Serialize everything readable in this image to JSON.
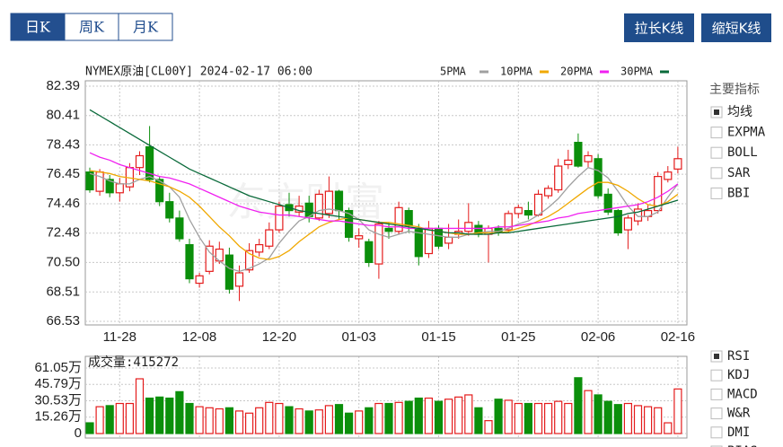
{
  "tabs": [
    "日K",
    "周K",
    "月K"
  ],
  "buttons": [
    "拉长K线",
    "缩短K线"
  ],
  "indicators": {
    "title": "主要指标",
    "options": [
      "均线",
      "EXPMA",
      "BOLL",
      "SAR",
      "BBI"
    ],
    "selected": 0
  },
  "sub_indicators": {
    "options": [
      "RSI",
      "KDJ",
      "MACD",
      "W&R",
      "DMI",
      "BIAS"
    ],
    "selected": 0
  },
  "chart_data": [
    {
      "type": "candlestick",
      "title": "NYMEX原油[CL00Y] 2024-02-17 06:00",
      "watermark": "东方财富",
      "up_color": "#e41b1b",
      "down_color": "#0b8f0b",
      "categories": [
        null,
        null,
        null,
        "11-28",
        null,
        null,
        null,
        null,
        null,
        null,
        null,
        "12-08",
        null,
        null,
        null,
        null,
        null,
        null,
        null,
        "12-20",
        null,
        null,
        null,
        null,
        null,
        null,
        null,
        "01-03",
        null,
        null,
        null,
        null,
        null,
        null,
        null,
        "01-15",
        null,
        null,
        null,
        null,
        null,
        null,
        null,
        "01-25",
        null,
        null,
        null,
        null,
        null,
        null,
        null,
        "02-06",
        null,
        null,
        null,
        null,
        null,
        null,
        null,
        "02-16"
      ],
      "open": [
        76.6,
        75.3,
        76.1,
        75.2,
        75.6,
        76.9,
        78.3,
        76.1,
        74.6,
        73.5,
        71.7,
        69.1,
        69.9,
        70.6,
        71.0,
        68.9,
        70.0,
        71.2,
        71.6,
        72.7,
        74.4,
        73.9,
        74.5,
        73.5,
        73.8,
        75.3,
        74.0,
        72.1,
        71.9,
        70.4,
        72.8,
        72.6,
        74.0,
        72.8,
        71.1,
        72.8,
        71.8,
        72.4,
        72.6,
        73.0,
        72.4,
        72.8,
        72.7,
        73.8,
        74.0,
        73.7,
        75.0,
        75.4,
        77.1,
        78.6,
        77.3,
        77.5,
        75.1,
        74.0,
        72.7,
        73.3,
        73.6,
        74.0,
        76.1,
        76.8
      ],
      "high": [
        76.9,
        76.8,
        76.4,
        76.2,
        77.2,
        78.0,
        79.7,
        76.3,
        75.2,
        74.0,
        72.1,
        69.8,
        72.0,
        71.9,
        71.5,
        70.3,
        71.8,
        72.1,
        73.2,
        74.6,
        75.2,
        75.0,
        75.0,
        75.4,
        76.3,
        75.4,
        74.2,
        72.8,
        72.1,
        73.3,
        73.2,
        74.6,
        74.2,
        73.1,
        73.3,
        73.0,
        73.1,
        73.4,
        74.5,
        73.3,
        73.0,
        73.0,
        74.0,
        74.4,
        74.6,
        75.4,
        75.7,
        77.5,
        78.1,
        79.2,
        78.0,
        77.8,
        75.5,
        74.1,
        73.7,
        74.5,
        74.4,
        76.6,
        77.0,
        78.3
      ],
      "low": [
        75.2,
        75.0,
        74.9,
        74.6,
        75.3,
        76.4,
        75.9,
        74.3,
        73.2,
        71.9,
        69.1,
        68.8,
        69.7,
        70.4,
        68.4,
        67.9,
        69.8,
        70.9,
        71.4,
        72.5,
        73.6,
        73.6,
        73.2,
        73.3,
        73.5,
        73.4,
        71.9,
        71.5,
        70.2,
        69.4,
        72.1,
        72.4,
        72.5,
        70.3,
        70.8,
        71.4,
        71.4,
        72.1,
        72.3,
        72.2,
        70.5,
        72.3,
        72.5,
        73.5,
        73.4,
        73.6,
        74.8,
        75.2,
        76.8,
        76.9,
        76.9,
        74.8,
        73.7,
        72.3,
        71.4,
        73.0,
        73.3,
        73.8,
        75.9,
        76.5
      ],
      "close": [
        75.4,
        76.6,
        75.2,
        75.8,
        76.9,
        77.7,
        76.1,
        74.6,
        73.5,
        72.1,
        69.4,
        69.6,
        71.6,
        71.4,
        68.7,
        69.8,
        71.3,
        71.7,
        72.7,
        74.3,
        74.0,
        74.3,
        73.6,
        75.1,
        75.3,
        74.0,
        72.2,
        72.3,
        70.5,
        73.1,
        72.6,
        74.2,
        73.0,
        70.9,
        72.8,
        71.6,
        72.2,
        72.6,
        73.2,
        72.4,
        72.8,
        72.5,
        73.8,
        74.2,
        73.7,
        75.1,
        75.5,
        77.0,
        77.4,
        77.0,
        77.7,
        75.0,
        73.9,
        72.5,
        73.5,
        74.1,
        74.0,
        76.3,
        76.6,
        77.5
      ],
      "series": [
        {
          "name": "5PMA",
          "color": "#a0a0a0",
          "values": [
            76.5,
            76.3,
            76.0,
            75.8,
            75.8,
            76.1,
            76.3,
            76.0,
            75.6,
            74.9,
            73.4,
            72.2,
            71.2,
            70.6,
            70.1,
            69.9,
            70.1,
            70.4,
            70.8,
            71.8,
            72.6,
            73.3,
            73.6,
            74.0,
            74.1,
            74.0,
            73.8,
            73.4,
            72.7,
            72.4,
            72.2,
            72.4,
            72.6,
            72.5,
            72.4,
            72.3,
            72.2,
            72.2,
            72.4,
            72.5,
            72.6,
            72.6,
            72.8,
            73.1,
            73.3,
            73.7,
            74.2,
            74.8,
            75.6,
            76.3,
            76.9,
            76.7,
            76.2,
            75.3,
            74.3,
            73.6,
            73.6,
            73.9,
            74.9,
            75.8
          ]
        },
        {
          "name": "10PMA",
          "color": "#f0a800",
          "values": [
            76.7,
            76.6,
            76.5,
            76.3,
            76.2,
            76.1,
            76.0,
            75.8,
            75.6,
            75.3,
            74.9,
            74.3,
            73.6,
            72.9,
            72.3,
            71.6,
            71.1,
            70.8,
            70.7,
            70.9,
            71.3,
            71.9,
            72.4,
            72.9,
            73.2,
            73.4,
            73.5,
            73.4,
            73.3,
            73.2,
            73.2,
            73.1,
            73.0,
            72.9,
            72.7,
            72.6,
            72.5,
            72.4,
            72.4,
            72.5,
            72.5,
            72.5,
            72.6,
            72.8,
            73.0,
            73.3,
            73.6,
            74.0,
            74.5,
            75.0,
            75.5,
            75.9,
            75.9,
            75.7,
            75.3,
            74.8,
            74.4,
            74.3,
            74.6,
            75.1
          ]
        },
        {
          "name": "20PMA",
          "color": "#f020f0",
          "values": [
            77.9,
            77.6,
            77.4,
            77.1,
            76.9,
            76.7,
            76.5,
            76.3,
            76.2,
            76.0,
            75.8,
            75.5,
            75.2,
            74.9,
            74.6,
            74.3,
            74.1,
            73.9,
            73.8,
            73.7,
            73.7,
            73.6,
            73.5,
            73.4,
            73.3,
            73.3,
            73.2,
            73.1,
            73.0,
            73.0,
            72.9,
            72.9,
            72.8,
            72.8,
            72.8,
            72.8,
            72.8,
            72.8,
            72.8,
            72.8,
            72.8,
            72.9,
            72.9,
            73.0,
            73.1,
            73.2,
            73.3,
            73.5,
            73.6,
            73.8,
            73.9,
            74.0,
            74.1,
            74.2,
            74.3,
            74.4,
            74.6,
            74.9,
            75.3,
            75.8
          ]
        },
        {
          "name": "30PMA",
          "color": "#0a6a3a",
          "values": [
            80.8,
            80.4,
            80.0,
            79.6,
            79.2,
            78.8,
            78.4,
            78.0,
            77.6,
            77.2,
            76.8,
            76.5,
            76.2,
            75.9,
            75.6,
            75.3,
            75.0,
            74.8,
            74.6,
            74.4,
            74.2,
            74.0,
            73.9,
            73.8,
            73.7,
            73.6,
            73.5,
            73.4,
            73.3,
            73.2,
            73.1,
            73.0,
            72.9,
            72.8,
            72.7,
            72.6,
            72.5,
            72.5,
            72.4,
            72.4,
            72.4,
            72.5,
            72.5,
            72.6,
            72.7,
            72.8,
            72.9,
            73.0,
            73.1,
            73.2,
            73.3,
            73.4,
            73.5,
            73.6,
            73.8,
            73.9,
            74.1,
            74.3,
            74.5,
            74.7
          ]
        }
      ],
      "ylim": [
        66.53,
        82.39
      ],
      "yticks": [
        66.53,
        68.51,
        {
          "value": 70.5,
          "label": "70.50"
        },
        72.48,
        74.46,
        76.45,
        78.43,
        80.41,
        82.39
      ],
      "grid": true
    },
    {
      "type": "bar",
      "title": "成交量:415272",
      "values": [
        10,
        25,
        26,
        28,
        28,
        51,
        33,
        34,
        33,
        39,
        28,
        25,
        24,
        23,
        24,
        21,
        19,
        24,
        29,
        28,
        25,
        23,
        21,
        22,
        26,
        27,
        19,
        21,
        24,
        28,
        28,
        29,
        30,
        33,
        33,
        30,
        32,
        34,
        36,
        24,
        12,
        32,
        31,
        28,
        28,
        28,
        28,
        30,
        28,
        52,
        40,
        36,
        30,
        27,
        28,
        26,
        25,
        24,
        10,
        41.5272
      ],
      "ylim": [
        0,
        61.05
      ],
      "yticks": [
        0,
        {
          "value": 15.26,
          "label": "15.26万"
        },
        {
          "value": 30.53,
          "label": "30.53万"
        },
        {
          "value": 45.79,
          "label": "45.79万"
        },
        {
          "value": 61.05,
          "label": "61.05万"
        }
      ],
      "grid": true
    }
  ]
}
